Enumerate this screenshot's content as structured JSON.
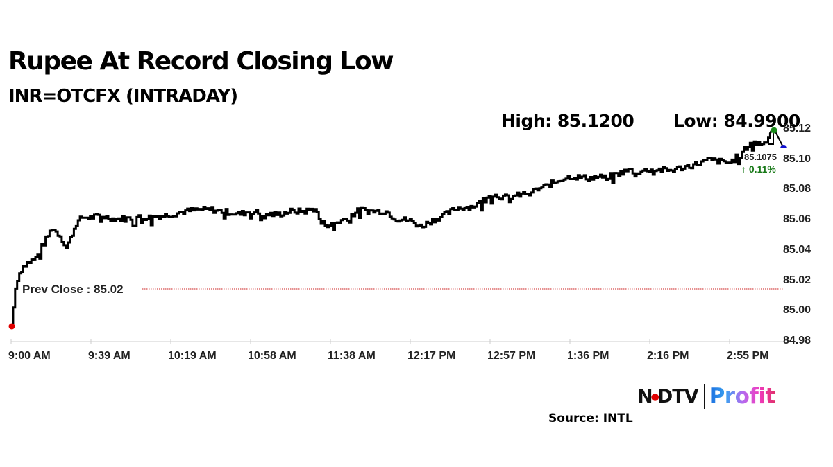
{
  "header": {
    "title": "Rupee At Record Closing Low",
    "subtitle": "INR=OTCFX (INTRADAY)",
    "high_label": "High: 85.1200",
    "low_label": "Low: 84.9900"
  },
  "annotations": {
    "prev_close_label": "Prev Close : 85.02",
    "last_price": "85.1075",
    "change": "↑ 0.11%",
    "change_color": "#1a7a1a",
    "open_marker_color": "#e00000",
    "high_marker_color": "#1a8a1a",
    "last_marker_color": "#1010d0"
  },
  "footer": {
    "brand_left": "N•DTV",
    "brand_right": "Profit",
    "source": "Source: INTL"
  },
  "chart_data": {
    "type": "line",
    "title": "Rupee At Record Closing Low",
    "subtitle": "INR=OTCFX (INTRADAY)",
    "xlabel": "",
    "ylabel": "",
    "x_ticks": [
      "9:00 AM",
      "9:39 AM",
      "10:19 AM",
      "10:58 AM",
      "11:38 AM",
      "12:17 PM",
      "12:57 PM",
      "1:36 PM",
      "2:16 PM",
      "2:55 PM"
    ],
    "y_ticks": [
      "85.12",
      "85.10",
      "85.08",
      "85.06",
      "85.04",
      "85.02",
      "85.00",
      "84.98"
    ],
    "ylim": [
      84.98,
      85.12
    ],
    "grid": false,
    "legend": null,
    "reference_lines": [
      {
        "label": "Prev Close",
        "value": 85.02,
        "color": "#cc0000",
        "style": "dotted"
      }
    ],
    "summary": {
      "high": 85.12,
      "low": 84.99,
      "last": 85.1075,
      "change_pct": 0.11
    },
    "series": [
      {
        "name": "INR=OTCFX",
        "x": [
          "9:00",
          "9:02",
          "9:04",
          "9:06",
          "9:08",
          "9:12",
          "9:16",
          "9:20",
          "9:24",
          "9:27",
          "9:29",
          "9:32",
          "9:35",
          "9:39",
          "9:45",
          "9:50",
          "9:56",
          "10:02",
          "10:08",
          "10:14",
          "10:19",
          "10:26",
          "10:32",
          "10:38",
          "10:45",
          "10:52",
          "10:58",
          "11:05",
          "11:12",
          "11:18",
          "11:25",
          "11:30",
          "11:33",
          "11:38",
          "11:45",
          "11:52",
          "11:58",
          "12:05",
          "12:10",
          "12:17",
          "12:22",
          "12:28",
          "12:33",
          "12:40",
          "12:47",
          "12:52",
          "12:55",
          "12:57",
          "13:05",
          "13:12",
          "13:19",
          "13:25",
          "13:31",
          "13:36",
          "13:45",
          "13:55",
          "14:05",
          "14:10",
          "14:16",
          "14:25",
          "14:35",
          "14:45",
          "14:55",
          "15:00",
          "15:05",
          "15:12",
          "15:16",
          "15:18"
        ],
        "values": [
          84.99,
          85.015,
          85.025,
          85.03,
          85.032,
          85.035,
          85.045,
          85.055,
          85.05,
          85.042,
          85.048,
          85.058,
          85.062,
          85.062,
          85.063,
          85.061,
          85.061,
          85.062,
          85.062,
          85.063,
          85.064,
          85.066,
          85.067,
          85.067,
          85.066,
          85.064,
          85.066,
          85.064,
          85.064,
          85.066,
          85.066,
          85.068,
          85.058,
          85.057,
          85.061,
          85.067,
          85.066,
          85.066,
          85.061,
          85.06,
          85.056,
          85.06,
          85.063,
          85.068,
          85.069,
          85.072,
          85.077,
          85.077,
          85.075,
          85.077,
          85.08,
          85.083,
          85.087,
          85.089,
          85.088,
          85.089,
          85.093,
          85.092,
          85.094,
          85.093,
          85.096,
          85.1,
          85.098,
          85.104,
          85.111,
          85.111,
          85.12,
          85.1075
        ]
      }
    ]
  }
}
